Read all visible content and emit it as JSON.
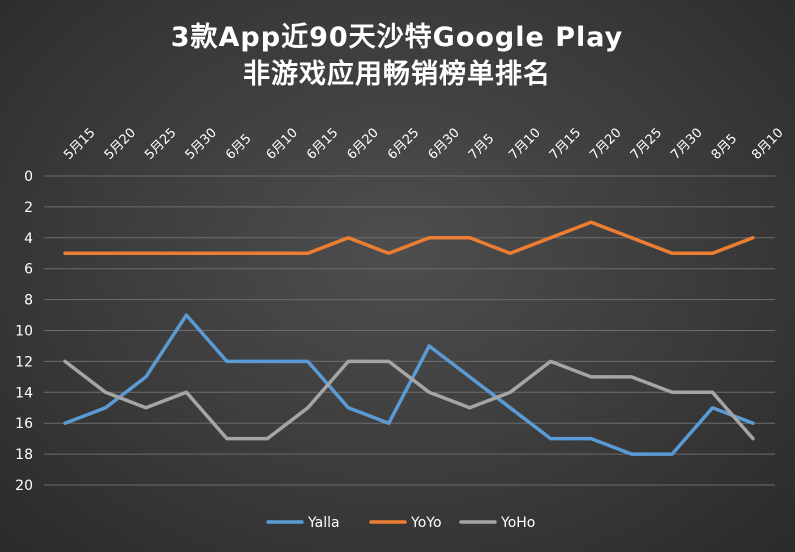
{
  "chart_data": {
    "type": "line",
    "title_lines": [
      "3款App近90天沙特Google Play",
      "非游戏应用畅销榜单排名"
    ],
    "categories": [
      "5月15",
      "5月20",
      "5月25",
      "5月30",
      "6月5",
      "6月10",
      "6月15",
      "6月20",
      "6月25",
      "6月30",
      "7月5",
      "7月10",
      "7月15",
      "7月20",
      "7月25",
      "7月30",
      "8月5",
      "8月10"
    ],
    "y_ticks": [
      0,
      2,
      4,
      6,
      8,
      10,
      12,
      14,
      16,
      18,
      20
    ],
    "ylim": [
      0,
      20
    ],
    "y_reversed": true,
    "grid": true,
    "legend_position": "bottom",
    "series": [
      {
        "name": "Yalla",
        "color": "#5b9bd5",
        "values": [
          16,
          15,
          13,
          9,
          12,
          12,
          12,
          15,
          16,
          11,
          13,
          15,
          17,
          17,
          18,
          18,
          15,
          16
        ]
      },
      {
        "name": "YoYo",
        "color": "#ed7d31",
        "values": [
          5,
          5,
          5,
          5,
          5,
          5,
          5,
          4,
          5,
          4,
          4,
          5,
          4,
          3,
          4,
          5,
          5,
          4
        ]
      },
      {
        "name": "YoHo",
        "color": "#a5a5a5",
        "values": [
          12,
          14,
          15,
          14,
          17,
          17,
          15,
          12,
          12,
          14,
          15,
          14,
          12,
          13,
          13,
          14,
          14,
          17
        ]
      }
    ]
  }
}
